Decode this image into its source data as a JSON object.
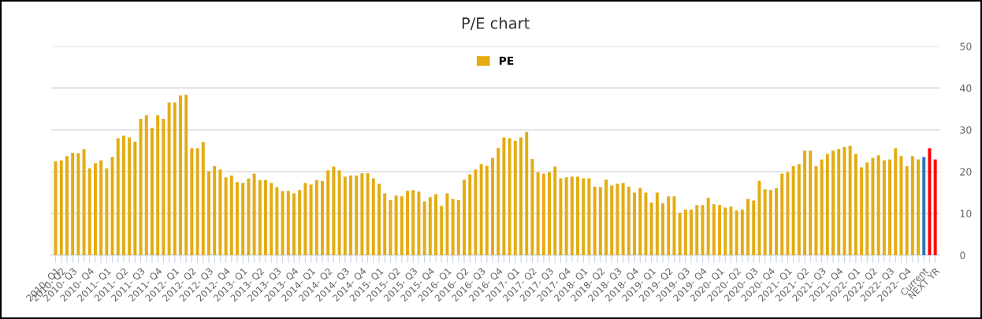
{
  "chart_data": {
    "type": "bar",
    "title": "P/E chart",
    "categories": [
      "2010- Q1",
      "2010- Q2",
      null,
      "2010- Q3",
      null,
      null,
      "2010- Q4",
      null,
      null,
      "2011- Q1",
      null,
      null,
      "2011- Q2",
      null,
      null,
      "2011- Q3",
      null,
      null,
      "2011- Q4",
      null,
      null,
      "2012- Q1",
      null,
      null,
      "2012- Q2",
      null,
      null,
      "2012- Q3",
      null,
      null,
      "2012- Q4",
      null,
      null,
      "2013- Q1",
      null,
      null,
      "2013- Q2",
      null,
      null,
      "2013- Q3",
      null,
      null,
      "2013- Q4",
      null,
      null,
      "2014- Q1",
      null,
      null,
      "2014- Q2",
      null,
      null,
      "2014- Q3",
      null,
      null,
      "2014- Q4",
      null,
      null,
      "2015- Q1",
      null,
      null,
      "2015- Q2",
      null,
      null,
      "2015- Q3",
      null,
      null,
      "2015- Q4",
      null,
      null,
      "2016- Q1",
      null,
      null,
      "2016- Q2",
      null,
      null,
      "2016- Q3",
      null,
      null,
      "2016- Q4",
      null,
      null,
      "2017- Q1",
      null,
      null,
      "2017- Q2",
      null,
      null,
      "2017- Q3",
      null,
      null,
      "2017- Q4",
      null,
      null,
      "2018- Q1",
      null,
      null,
      "2018- Q2",
      null,
      null,
      "2018- Q3",
      null,
      null,
      "2018- Q4",
      null,
      null,
      "2019- Q1",
      null,
      null,
      "2019- Q2",
      null,
      null,
      "2019- Q3",
      null,
      null,
      "2019- Q4",
      null,
      null,
      "2020- Q1",
      null,
      null,
      "2020- Q2",
      null,
      null,
      "2020- Q3",
      null,
      null,
      "2020- Q4",
      null,
      null,
      "2021- Q1",
      null,
      null,
      "2021- Q2",
      null,
      null,
      "2021- Q3",
      null,
      null,
      "2021- Q4",
      null,
      null,
      "2022- Q1",
      null,
      null,
      "2022- Q2",
      null,
      null,
      "2022- Q3",
      null,
      null,
      "2022- Q4",
      null,
      null,
      "Current",
      null,
      "NEXT YR"
    ],
    "series": [
      {
        "name": "PE",
        "color": "#e3ac12",
        "colors": [
          "#e3ac12",
          "#e3ac12",
          "#e3ac12",
          "#e3ac12",
          "#e3ac12",
          "#e3ac12",
          "#e3ac12",
          "#e3ac12",
          "#e3ac12",
          "#e3ac12",
          "#e3ac12",
          "#e3ac12",
          "#e3ac12",
          "#e3ac12",
          "#e3ac12",
          "#e3ac12",
          "#e3ac12",
          "#e3ac12",
          "#e3ac12",
          "#e3ac12",
          "#e3ac12",
          "#e3ac12",
          "#e3ac12",
          "#e3ac12",
          "#e3ac12",
          "#e3ac12",
          "#e3ac12",
          "#e3ac12",
          "#e3ac12",
          "#e3ac12",
          "#e3ac12",
          "#e3ac12",
          "#e3ac12",
          "#e3ac12",
          "#e3ac12",
          "#e3ac12",
          "#e3ac12",
          "#e3ac12",
          "#e3ac12",
          "#e3ac12",
          "#e3ac12",
          "#e3ac12",
          "#e3ac12",
          "#e3ac12",
          "#e3ac12",
          "#e3ac12",
          "#e3ac12",
          "#e3ac12",
          "#e3ac12",
          "#e3ac12",
          "#e3ac12",
          "#e3ac12",
          "#e3ac12",
          "#e3ac12",
          "#e3ac12",
          "#e3ac12",
          "#e3ac12",
          "#e3ac12",
          "#e3ac12",
          "#e3ac12",
          "#e3ac12",
          "#e3ac12",
          "#e3ac12",
          "#e3ac12",
          "#e3ac12",
          "#e3ac12",
          "#e3ac12",
          "#e3ac12",
          "#e3ac12",
          "#e3ac12",
          "#e3ac12",
          "#e3ac12",
          "#e3ac12",
          "#e3ac12",
          "#e3ac12",
          "#e3ac12",
          "#e3ac12",
          "#e3ac12",
          "#e3ac12",
          "#e3ac12",
          "#e3ac12",
          "#e3ac12",
          "#e3ac12",
          "#e3ac12",
          "#e3ac12",
          "#e3ac12",
          "#e3ac12",
          "#e3ac12",
          "#e3ac12",
          "#e3ac12",
          "#e3ac12",
          "#e3ac12",
          "#e3ac12",
          "#e3ac12",
          "#e3ac12",
          "#e3ac12",
          "#e3ac12",
          "#e3ac12",
          "#e3ac12",
          "#e3ac12",
          "#e3ac12",
          "#e3ac12",
          "#e3ac12",
          "#e3ac12",
          "#e3ac12",
          "#e3ac12",
          "#e3ac12",
          "#e3ac12",
          "#e3ac12",
          "#e3ac12",
          "#e3ac12",
          "#e3ac12",
          "#e3ac12",
          "#e3ac12",
          "#e3ac12",
          "#e3ac12",
          "#e3ac12",
          "#e3ac12",
          "#e3ac12",
          "#e3ac12",
          "#e3ac12",
          "#e3ac12",
          "#e3ac12",
          "#e3ac12",
          "#e3ac12",
          "#e3ac12",
          "#e3ac12",
          "#e3ac12",
          "#e3ac12",
          "#e3ac12",
          "#e3ac12",
          "#e3ac12",
          "#e3ac12",
          "#e3ac12",
          "#e3ac12",
          "#e3ac12",
          "#e3ac12",
          "#e3ac12",
          "#e3ac12",
          "#e3ac12",
          "#e3ac12",
          "#e3ac12",
          "#e3ac12",
          "#e3ac12",
          "#e3ac12",
          "#e3ac12",
          "#e3ac12",
          "#e3ac12",
          "#e3ac12",
          "#e3ac12",
          "#e3ac12",
          "#e3ac12",
          "#e3ac12",
          "#2878b8",
          "#ff0000",
          "#ff0000"
        ],
        "values": [
          22.5,
          22.7,
          23.7,
          24.5,
          24.4,
          25.4,
          20.8,
          22.0,
          22.7,
          20.8,
          23.5,
          28.0,
          28.6,
          28.2,
          27.2,
          32.6,
          33.5,
          30.5,
          33.5,
          32.6,
          36.5,
          36.5,
          38.2,
          38.4,
          25.6,
          25.6,
          27.1,
          20.1,
          21.3,
          20.5,
          18.6,
          19.1,
          17.5,
          17.3,
          18.4,
          19.5,
          18.0,
          18.0,
          17.3,
          16.3,
          15.3,
          15.4,
          14.8,
          15.6,
          17.3,
          16.9,
          18.0,
          17.7,
          20.3,
          21.2,
          20.3,
          18.8,
          19.1,
          19.1,
          19.6,
          19.6,
          18.4,
          17.1,
          14.8,
          13.2,
          14.3,
          14.1,
          15.4,
          15.6,
          15.2,
          12.9,
          13.9,
          14.6,
          11.8,
          14.8,
          13.5,
          13.2,
          18.1,
          19.3,
          20.5,
          21.8,
          21.4,
          23.3,
          25.7,
          28.2,
          28.0,
          27.4,
          28.2,
          29.5,
          23.0,
          19.9,
          19.5,
          19.9,
          21.2,
          18.4,
          18.6,
          18.8,
          18.8,
          18.4,
          18.4,
          16.4,
          16.3,
          18.1,
          16.7,
          17.1,
          17.3,
          16.4,
          15.0,
          16.1,
          15.0,
          12.6,
          15.0,
          12.4,
          14.1,
          14.1,
          10.1,
          10.9,
          10.9,
          12.0,
          12.0,
          13.7,
          12.2,
          12.0,
          11.4,
          11.6,
          10.7,
          10.9,
          13.5,
          13.1,
          17.8,
          15.8,
          15.6,
          16.0,
          19.5,
          19.9,
          21.3,
          21.8,
          25.0,
          25.0,
          21.3,
          22.9,
          24.2,
          25.0,
          25.4,
          25.9,
          26.2,
          24.2,
          21.0,
          22.2,
          23.3,
          23.9,
          22.7,
          22.9,
          25.6,
          23.7,
          21.3,
          23.7,
          22.9,
          23.5,
          25.6,
          22.9
        ]
      }
    ],
    "ylim": [
      0,
      50
    ],
    "yticks": [
      0,
      10,
      20,
      30,
      40,
      50
    ],
    "grid": "y",
    "legend": "top"
  }
}
